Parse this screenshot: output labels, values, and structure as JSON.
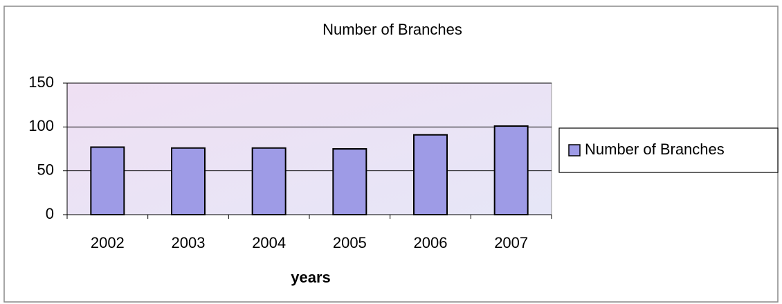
{
  "chart_data": {
    "type": "bar",
    "title": "Number of Branches",
    "x_label": "years",
    "categories": [
      "2002",
      "2003",
      "2004",
      "2005",
      "2006",
      "2007"
    ],
    "series": [
      {
        "name": "Number of Branches",
        "color": "#9e9be6",
        "values": [
          77,
          76,
          76,
          75,
          91,
          101
        ]
      }
    ],
    "ylim": [
      0,
      150
    ],
    "yticks": [
      0,
      50,
      100,
      150
    ],
    "grid": true,
    "legend": "right"
  }
}
